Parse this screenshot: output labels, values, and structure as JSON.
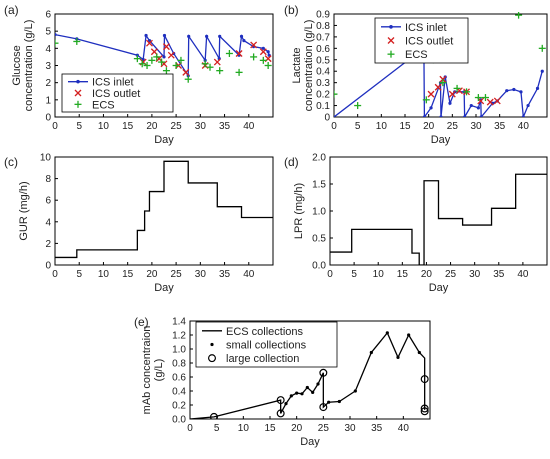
{
  "chart_data": [
    {
      "id": "a",
      "panel_label": "(a)",
      "type": "line",
      "xlabel": "Day",
      "ylabel": "Glucose\nconcentration (g/L)",
      "xlim": [
        0,
        45
      ],
      "ylim": [
        0,
        6
      ],
      "xticks": [
        0,
        5,
        10,
        15,
        20,
        25,
        30,
        35,
        40
      ],
      "yticks": [
        0,
        1,
        2,
        3,
        4,
        5,
        6
      ],
      "grid": false,
      "legend": {
        "position": "bottom-left",
        "entries": [
          "ICS inlet",
          "ICS outlet",
          "ECS"
        ]
      },
      "colors": {
        "ics_inlet": "#1f2fbf",
        "ics_outlet": "#d42020",
        "ecs": "#22aa22"
      },
      "series": [
        {
          "name": "ICS inlet",
          "style": "line-dots",
          "x": [
            0,
            4.5,
            17,
            18.2,
            18.8,
            19.5,
            22.5,
            22.6,
            24.5,
            27.5,
            27.6,
            31,
            31.3,
            33.9,
            34,
            38,
            38.5,
            39,
            41,
            43,
            44,
            44.2
          ],
          "y": [
            4.8,
            4.55,
            3.6,
            3.35,
            4.75,
            4.45,
            3.5,
            4.75,
            3.7,
            2.4,
            4.7,
            3.3,
            4.7,
            3.4,
            4.7,
            3.6,
            4.7,
            4.45,
            4.1,
            4.0,
            3.8,
            3.6
          ]
        },
        {
          "name": "ICS outlet",
          "style": "x-marker",
          "x": [
            18.2,
            19.5,
            20.5,
            21.5,
            22.5,
            23,
            24,
            25.5,
            27,
            31,
            33.5,
            38,
            41,
            43,
            44
          ],
          "y": [
            3.2,
            4.3,
            3.8,
            3.4,
            3.1,
            4.1,
            3.6,
            3.0,
            2.6,
            3.0,
            3.2,
            3.7,
            4.2,
            3.8,
            3.4
          ]
        },
        {
          "name": "ECS",
          "style": "plus-marker",
          "x": [
            0,
            4.5,
            17,
            18,
            19,
            20,
            21,
            22,
            23,
            25,
            26,
            27.5,
            31,
            32,
            34,
            36,
            38,
            41,
            43,
            44
          ],
          "y": [
            4.3,
            4.4,
            3.4,
            3.1,
            3.0,
            3.3,
            3.5,
            3.2,
            2.7,
            3.0,
            3.3,
            2.2,
            3.1,
            2.9,
            2.7,
            3.7,
            2.6,
            3.5,
            3.3,
            3.0
          ]
        }
      ]
    },
    {
      "id": "b",
      "panel_label": "(b)",
      "type": "line",
      "xlabel": "Day",
      "ylabel": "Lactate\nconcentration (g/L)",
      "xlim": [
        0,
        45
      ],
      "ylim": [
        0,
        0.9
      ],
      "xticks": [
        0,
        5,
        10,
        15,
        20,
        25,
        30,
        35,
        40
      ],
      "yticks": [
        0,
        0.1,
        0.2,
        0.3,
        0.4,
        0.5,
        0.6,
        0.7,
        0.8,
        0.9
      ],
      "grid": false,
      "legend": {
        "position": "top-right",
        "entries": [
          "ICS inlet",
          "ICS outlet",
          "ECS"
        ]
      },
      "colors": {
        "ics_inlet": "#1f2fbf",
        "ics_outlet": "#d42020",
        "ecs": "#22aa22"
      },
      "series": [
        {
          "name": "ICS inlet",
          "style": "line-dots",
          "x": [
            0,
            17,
            18.5,
            19,
            19.1,
            20.5,
            22.5,
            22.6,
            23.5,
            24.5,
            25.5,
            27.5,
            27.6,
            29,
            30.5,
            31,
            31.1,
            33.5,
            34.5,
            36.5,
            38,
            39.5,
            40,
            41,
            43,
            44
          ],
          "y": [
            0,
            0.54,
            0.55,
            0.54,
            0,
            0.08,
            0.3,
            0,
            0.35,
            0.12,
            0.22,
            0.22,
            0,
            0.1,
            0.08,
            0.15,
            0,
            0.12,
            0.14,
            0.23,
            0.24,
            0.22,
            0,
            0.1,
            0.25,
            0.4
          ]
        },
        {
          "name": "ICS outlet",
          "style": "x-marker",
          "x": [
            18.3,
            19,
            20.5,
            22,
            23,
            25,
            26.5,
            28,
            31,
            33,
            34.5
          ],
          "y": [
            0.55,
            0.53,
            0.2,
            0.26,
            0.33,
            0.2,
            0.23,
            0.22,
            0.14,
            0.13,
            0.14
          ]
        },
        {
          "name": "ECS",
          "style": "plus-marker",
          "x": [
            0,
            5,
            17,
            18.5,
            19.5,
            21,
            23,
            24.5,
            26,
            28,
            30.5,
            32,
            39,
            44
          ],
          "y": [
            0.2,
            0.1,
            0.55,
            0.54,
            0.15,
            0.5,
            0.3,
            0.6,
            0.25,
            0.22,
            0.17,
            0.17,
            0.89,
            0.6
          ]
        }
      ]
    },
    {
      "id": "c",
      "panel_label": "(c)",
      "type": "line",
      "xlabel": "Day",
      "ylabel": "GUR (mg/h)",
      "xlim": [
        0,
        45
      ],
      "ylim": [
        0,
        10
      ],
      "xticks": [
        0,
        5,
        10,
        15,
        20,
        25,
        30,
        35,
        40
      ],
      "yticks": [
        0,
        2,
        4,
        6,
        8,
        10
      ],
      "grid": false,
      "series": [
        {
          "name": "",
          "style": "step",
          "x": [
            0,
            4.5,
            4.5,
            17,
            17,
            18.5,
            18.5,
            19.5,
            19.5,
            22.5,
            22.5,
            27.5,
            27.5,
            33.5,
            33.5,
            38.5,
            38.5,
            45
          ],
          "y": [
            0.7,
            0.7,
            1.4,
            1.4,
            3.2,
            3.2,
            5.0,
            5.0,
            6.8,
            6.8,
            9.6,
            9.6,
            7.6,
            7.6,
            5.4,
            5.4,
            4.4,
            4.4
          ]
        }
      ]
    },
    {
      "id": "d",
      "panel_label": "(d)",
      "type": "line",
      "xlabel": "Day",
      "ylabel": "LPR (mg/h)",
      "xlim": [
        0,
        45
      ],
      "ylim": [
        0,
        2
      ],
      "xticks": [
        0,
        5,
        10,
        15,
        20,
        25,
        30,
        35,
        40
      ],
      "yticks": [
        0,
        0.5,
        1,
        1.5,
        2
      ],
      "ytick_labels": [
        "0.0",
        "0.5",
        "1.0",
        "1.5",
        "2.0"
      ],
      "grid": false,
      "series": [
        {
          "name": "",
          "style": "step",
          "x": [
            0,
            4.5,
            4.5,
            17,
            17,
            18.5,
            18.5,
            19.5,
            19.5,
            22.5,
            22.5,
            27.5,
            27.5,
            33.5,
            33.5,
            38.5,
            38.5,
            45
          ],
          "y": [
            0.24,
            0.24,
            0.66,
            0.66,
            0.22,
            0.22,
            0.0,
            0.0,
            1.56,
            1.56,
            0.86,
            0.86,
            0.74,
            0.74,
            1.05,
            1.05,
            1.68,
            1.68
          ]
        }
      ]
    },
    {
      "id": "e",
      "panel_label": "(e)",
      "type": "line",
      "xlabel": "Day",
      "ylabel": "mAb concentraion\n(g/L)",
      "xlim": [
        0,
        45
      ],
      "ylim": [
        0,
        1.4
      ],
      "xticks": [
        0,
        5,
        10,
        15,
        20,
        25,
        30,
        35,
        40
      ],
      "yticks": [
        0,
        0.2,
        0.4,
        0.6,
        0.8,
        1.0,
        1.2,
        1.4
      ],
      "ytick_labels": [
        "0.0",
        "0.2",
        "0.4",
        "0.6",
        "0.8",
        "1.0",
        "1.2",
        "1.4"
      ],
      "grid": false,
      "legend": {
        "position": "top-right",
        "entries": [
          "ECS collections",
          "small collections",
          "large collection"
        ]
      },
      "series": [
        {
          "name": "ECS collections",
          "style": "line",
          "x": [
            0,
            4.5,
            17,
            17,
            18,
            19,
            20,
            21,
            22,
            23,
            24,
            25,
            25,
            26,
            28,
            31,
            34,
            37,
            39,
            41,
            43,
            44,
            44,
            44
          ],
          "y": [
            0,
            0.03,
            0.27,
            0.08,
            0.22,
            0.33,
            0.37,
            0.36,
            0.45,
            0.38,
            0.5,
            0.66,
            0.17,
            0.24,
            0.25,
            0.4,
            0.95,
            1.23,
            0.88,
            1.2,
            0.95,
            0.87,
            0.57,
            0.13
          ]
        },
        {
          "name": "small collections",
          "style": "dot",
          "x": [
            18,
            19,
            20,
            21,
            22,
            23,
            24,
            26,
            28,
            31,
            34,
            37,
            39,
            41,
            43
          ],
          "y": [
            0.22,
            0.33,
            0.37,
            0.36,
            0.45,
            0.38,
            0.5,
            0.24,
            0.25,
            0.4,
            0.95,
            1.23,
            0.88,
            1.2,
            0.95
          ]
        },
        {
          "name": "large collection",
          "style": "open-circle",
          "x": [
            4.5,
            17,
            17,
            25,
            25,
            44,
            44,
            44
          ],
          "y": [
            0.03,
            0.27,
            0.08,
            0.66,
            0.17,
            0.57,
            0.15,
            0.11
          ]
        }
      ]
    }
  ]
}
